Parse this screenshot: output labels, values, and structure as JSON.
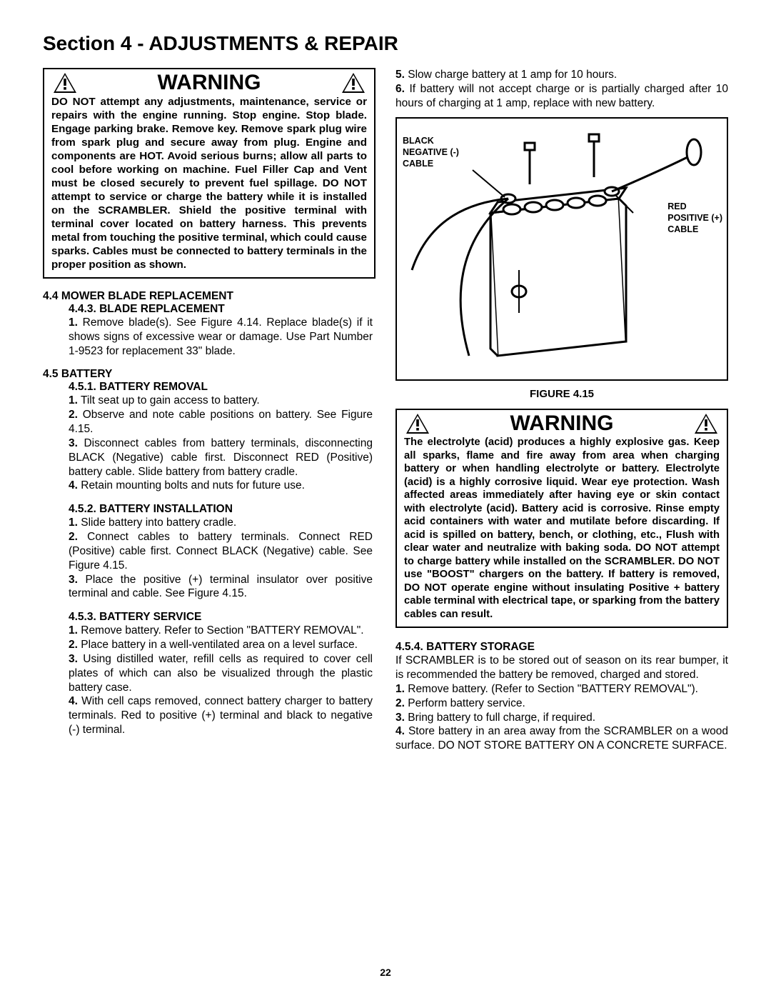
{
  "page_title": "Section 4 - ADJUSTMENTS & REPAIR",
  "page_number": "22",
  "warning1": {
    "title": "WARNING",
    "body": "DO NOT attempt any adjustments, maintenance, service or repairs with the engine running. Stop engine. Stop blade. Engage parking brake. Remove key. Remove spark plug wire from spark plug and secure away from plug. Engine and components are HOT. Avoid serious burns; allow all parts to cool before working on machine. Fuel Filler Cap and Vent must be closed securely to prevent fuel spillage. DO NOT attempt to service or charge the battery while it is installed on the SCRAMBLER. Shield the positive terminal with terminal cover located on battery harness. This prevents metal from touching the positive terminal, which could cause sparks. Cables must be connected to battery terminals in the proper position as shown."
  },
  "sec44": {
    "head": "4.4  MOWER BLADE REPLACEMENT",
    "sub": "4.4.3.  BLADE REPLACEMENT",
    "p1": "1. Remove blade(s). See Figure 4.14. Replace blade(s) if it shows signs of excessive wear or damage. Use Part Number 1-9523 for replacement 33\" blade."
  },
  "sec45": {
    "head": "4.5  BATTERY",
    "s451_head": "4.5.1.  BATTERY REMOVAL",
    "s451_1": "1. Tilt seat up to gain access to battery.",
    "s451_2": "2. Observe and note cable positions on battery. See Figure 4.15.",
    "s451_3": "3. Disconnect cables from battery terminals, disconnecting BLACK (Negative) cable first. Disconnect RED (Positive) battery cable. Slide battery from battery cradle.",
    "s451_4": "4. Retain mounting bolts and nuts for future use.",
    "s452_head": "4.5.2.  BATTERY INSTALLATION",
    "s452_1": "1. Slide battery into battery cradle.",
    "s452_2": "2. Connect cables to battery terminals.  Connect RED (Positive) cable first. Connect BLACK (Negative) cable. See Figure 4.15.",
    "s452_3": "3. Place the positive (+) terminal insulator over positive terminal and cable. See Figure 4.15.",
    "s453_head": "4.5.3.  BATTERY SERVICE",
    "s453_1": "1. Remove battery. Refer to Section \"BATTERY REMOVAL\".",
    "s453_2": "2. Place battery in a well-ventilated area on a level surface.",
    "s453_3": "3. Using distilled water, refill cells as required to cover cell plates of which can also be visualized through the plastic battery case.",
    "s453_4": "4. With cell caps removed, connect battery charger to battery terminals.  Red to positive (+) terminal and black to negative (-) terminal."
  },
  "right_top": {
    "p5": "5. Slow charge battery at 1 amp for 10 hours.",
    "p6": "6. If battery will not accept charge or is partially charged after 10 hours of charging at 1 amp, replace with new battery."
  },
  "figure": {
    "caption": "FIGURE 4.15",
    "label_left": "BLACK\nNEGATIVE (-)\nCABLE",
    "label_right": "RED\nPOSITIVE (+)\nCABLE"
  },
  "warning2": {
    "title": "WARNING",
    "body": "The electrolyte (acid) produces a highly explosive gas. Keep all sparks, flame and fire away from area when charging battery or when handling electrolyte or battery. Electrolyte (acid) is a highly corrosive liquid. Wear eye protection. Wash affected areas immediately after having eye or skin contact with electrolyte (acid). Battery acid is corrosive. Rinse empty acid containers with water and mutilate before discarding. If acid is spilled on battery, bench, or clothing, etc., Flush with clear water and neutralize with baking soda. DO NOT attempt to charge battery while installed on the SCRAMBLER. DO NOT use \"BOOST\" chargers on the battery. If battery is removed, DO NOT operate engine without insulating Positive + battery cable terminal with electrical tape, or sparking from the battery cables can result."
  },
  "s454": {
    "head": "4.5.4.  BATTERY STORAGE",
    "intro": "If SCRAMBLER is to be stored out of season on its rear bumper, it is recommended the battery be removed, charged and stored.",
    "p1": "1. Remove battery. (Refer to Section \"BATTERY REMOVAL\").",
    "p2": "2. Perform battery service.",
    "p3": "3. Bring battery to full charge, if required.",
    "p4": "4. Store battery in an area away from the SCRAMBLER on a wood surface. DO NOT STORE BATTERY ON A CONCRETE SURFACE."
  }
}
